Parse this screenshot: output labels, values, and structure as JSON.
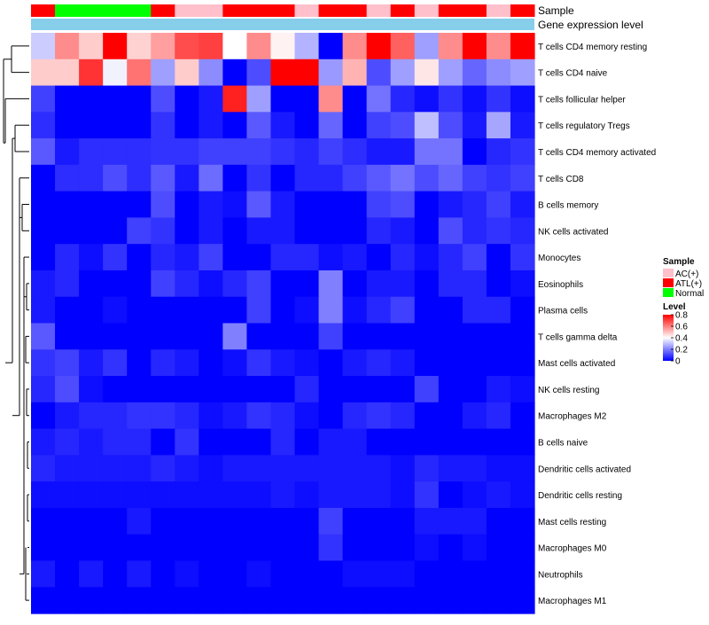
{
  "chart_data": {
    "type": "heatmap",
    "annotations": {
      "sample_label": "Sample",
      "gene_label": "Gene expression level",
      "sample_groups": [
        "ATL(+)",
        "Normal",
        "Normal",
        "Normal",
        "Normal",
        "ATL(+)",
        "AC(+)",
        "AC(+)",
        "ATL(+)",
        "ATL(+)",
        "ATL(+)",
        "AC(+)",
        "ATL(+)",
        "ATL(+)",
        "AC(+)",
        "ATL(+)",
        "AC(+)",
        "ATL(+)",
        "ATL(+)",
        "AC(+)",
        "ATL(+)"
      ]
    },
    "rows": [
      "T cells CD4 memory resting",
      "T cells CD4 naive",
      "T cells follicular helper",
      "T cells regulatory  Tregs",
      "T cells CD4 memory activated",
      "T cells CD8",
      "B cells memory",
      "NK cells activated",
      "Monocytes",
      "Eosinophils",
      "Plasma cells",
      "T cells gamma delta",
      "Mast cells activated",
      "NK cells resting",
      "Macrophages M2",
      "B cells naive",
      "Dendritic cells activated",
      "Dendritic cells resting",
      "Mast cells resting",
      "Macrophages M0",
      "Neutrophils",
      "Macrophages M1"
    ],
    "values": [
      [
        0.32,
        0.58,
        0.48,
        0.8,
        0.47,
        0.55,
        0.68,
        0.7,
        0.4,
        0.58,
        0.42,
        0.28,
        0.0,
        0.58,
        0.8,
        0.65,
        0.25,
        0.58,
        0.8,
        0.58,
        0.8
      ],
      [
        0.48,
        0.48,
        0.72,
        0.38,
        0.62,
        0.25,
        0.48,
        0.22,
        0.0,
        0.12,
        0.8,
        0.8,
        0.24,
        0.52,
        0.12,
        0.25,
        0.44,
        0.25,
        0.16,
        0.22,
        0.25
      ],
      [
        0.1,
        0.0,
        0.0,
        0.0,
        0.0,
        0.12,
        0.0,
        0.04,
        0.75,
        0.25,
        0.0,
        0.0,
        0.58,
        0.0,
        0.18,
        0.06,
        0.02,
        0.08,
        0.02,
        0.08,
        0.02
      ],
      [
        0.07,
        0.0,
        0.0,
        0.0,
        0.0,
        0.08,
        0.0,
        0.04,
        0.0,
        0.14,
        0.04,
        0.0,
        0.16,
        0.0,
        0.1,
        0.12,
        0.3,
        0.12,
        0.04,
        0.26,
        0.04
      ],
      [
        0.14,
        0.04,
        0.07,
        0.07,
        0.07,
        0.08,
        0.08,
        0.1,
        0.1,
        0.1,
        0.08,
        0.06,
        0.1,
        0.07,
        0.04,
        0.04,
        0.18,
        0.18,
        0.0,
        0.06,
        0.08
      ],
      [
        0.0,
        0.07,
        0.07,
        0.12,
        0.07,
        0.14,
        0.04,
        0.17,
        0.0,
        0.08,
        0.0,
        0.06,
        0.06,
        0.1,
        0.14,
        0.18,
        0.12,
        0.16,
        0.1,
        0.08,
        0.1
      ],
      [
        0.0,
        0.0,
        0.0,
        0.0,
        0.0,
        0.12,
        0.0,
        0.04,
        0.02,
        0.14,
        0.04,
        0.0,
        0.0,
        0.0,
        0.1,
        0.12,
        0.0,
        0.04,
        0.06,
        0.1,
        0.04
      ],
      [
        0.0,
        0.0,
        0.0,
        0.0,
        0.1,
        0.08,
        0.0,
        0.04,
        0.0,
        0.04,
        0.04,
        0.0,
        0.0,
        0.0,
        0.06,
        0.04,
        0.0,
        0.12,
        0.06,
        0.08,
        0.06
      ],
      [
        0.0,
        0.06,
        0.02,
        0.08,
        0.0,
        0.06,
        0.04,
        0.1,
        0.0,
        0.0,
        0.06,
        0.06,
        0.02,
        0.04,
        0.0,
        0.06,
        0.02,
        0.06,
        0.1,
        0.0,
        0.08
      ],
      [
        0.04,
        0.06,
        0.0,
        0.0,
        0.0,
        0.1,
        0.06,
        0.02,
        0.06,
        0.1,
        0.0,
        0.0,
        0.2,
        0.0,
        0.04,
        0.04,
        0.0,
        0.06,
        0.06,
        0.0,
        0.02
      ],
      [
        0.04,
        0.0,
        0.0,
        0.02,
        0.0,
        0.0,
        0.0,
        0.0,
        0.0,
        0.1,
        0.0,
        0.02,
        0.2,
        0.02,
        0.06,
        0.1,
        0.0,
        0.0,
        0.06,
        0.06,
        0.0
      ],
      [
        0.14,
        0.0,
        0.0,
        0.0,
        0.0,
        0.0,
        0.0,
        0.0,
        0.2,
        0.0,
        0.0,
        0.0,
        0.1,
        0.0,
        0.0,
        0.0,
        0.0,
        0.0,
        0.0,
        0.0,
        0.0
      ],
      [
        0.08,
        0.1,
        0.04,
        0.08,
        0.0,
        0.06,
        0.04,
        0.0,
        0.02,
        0.08,
        0.04,
        0.02,
        0.0,
        0.04,
        0.06,
        0.04,
        0.0,
        0.0,
        0.0,
        0.0,
        0.0
      ],
      [
        0.06,
        0.12,
        0.02,
        0.0,
        0.0,
        0.0,
        0.0,
        0.0,
        0.0,
        0.0,
        0.0,
        0.06,
        0.0,
        0.0,
        0.0,
        0.0,
        0.1,
        0.0,
        0.0,
        0.04,
        0.02
      ],
      [
        0.0,
        0.04,
        0.06,
        0.06,
        0.08,
        0.08,
        0.06,
        0.02,
        0.04,
        0.08,
        0.06,
        0.02,
        0.0,
        0.06,
        0.08,
        0.06,
        0.0,
        0.0,
        0.04,
        0.06,
        0.0
      ],
      [
        0.04,
        0.06,
        0.04,
        0.06,
        0.06,
        0.0,
        0.08,
        0.0,
        0.0,
        0.0,
        0.06,
        0.0,
        0.04,
        0.04,
        0.0,
        0.0,
        0.0,
        0.0,
        0.0,
        0.0,
        0.0
      ],
      [
        0.06,
        0.04,
        0.04,
        0.04,
        0.04,
        0.06,
        0.04,
        0.02,
        0.04,
        0.04,
        0.04,
        0.04,
        0.04,
        0.04,
        0.04,
        0.02,
        0.06,
        0.04,
        0.04,
        0.02,
        0.02
      ],
      [
        0.02,
        0.02,
        0.02,
        0.02,
        0.02,
        0.02,
        0.02,
        0.02,
        0.02,
        0.02,
        0.04,
        0.02,
        0.04,
        0.04,
        0.04,
        0.02,
        0.08,
        0.0,
        0.02,
        0.04,
        0.02
      ],
      [
        0.0,
        0.0,
        0.0,
        0.0,
        0.04,
        0.0,
        0.0,
        0.0,
        0.0,
        0.0,
        0.0,
        0.0,
        0.1,
        0.0,
        0.0,
        0.0,
        0.04,
        0.04,
        0.04,
        0.0,
        0.0
      ],
      [
        0.0,
        0.0,
        0.0,
        0.0,
        0.0,
        0.0,
        0.0,
        0.0,
        0.0,
        0.0,
        0.0,
        0.0,
        0.08,
        0.0,
        0.0,
        0.0,
        0.02,
        0.0,
        0.02,
        0.0,
        0.0
      ],
      [
        0.04,
        0.0,
        0.04,
        0.0,
        0.04,
        0.0,
        0.02,
        0.0,
        0.0,
        0.02,
        0.0,
        0.0,
        0.0,
        0.02,
        0.02,
        0.02,
        0.0,
        0.0,
        0.0,
        0.0,
        0.0
      ],
      [
        0.0,
        0.0,
        0.0,
        0.0,
        0.0,
        0.0,
        0.0,
        0.0,
        0.0,
        0.0,
        0.0,
        0.0,
        0.0,
        0.0,
        0.0,
        0.0,
        0.0,
        0.0,
        0.0,
        0.0,
        0.0
      ]
    ],
    "legend": {
      "sample_title": "Sample",
      "sample_entries": [
        {
          "label": "AC(+)",
          "color": "#ffc0cb"
        },
        {
          "label": "ATL(+)",
          "color": "#ff0000"
        },
        {
          "label": "Normal",
          "color": "#00ff00"
        }
      ],
      "level_title": "Level",
      "level_ticks": [
        0.8,
        0.6,
        0.4,
        0.2,
        0
      ]
    },
    "colors": {
      "low": "#0000ff",
      "mid": "#ffffff",
      "high": "#ff0000",
      "gene_bar": "#87ceeb",
      "ATL(+)": "#ff0000",
      "AC(+)": "#ffc0cb",
      "Normal": "#00ff00"
    },
    "scale": {
      "min": 0,
      "mid": 0.4,
      "max": 0.8
    }
  }
}
